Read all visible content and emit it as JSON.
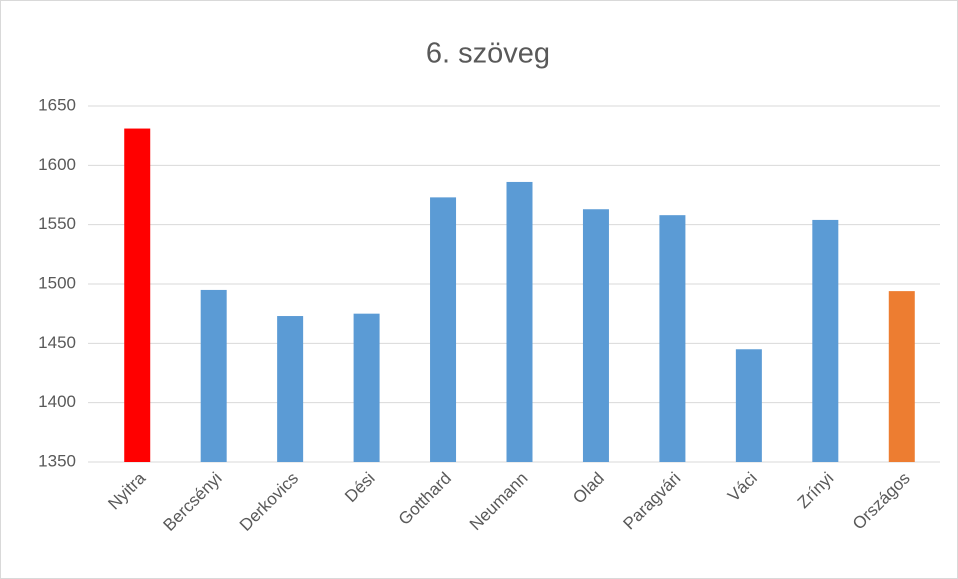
{
  "chart_data": {
    "type": "bar",
    "title": "6. szöveg",
    "categories": [
      "Nyitra",
      "Bercsényi",
      "Derkovics",
      "Dési",
      "Gotthard",
      "Neumann",
      "Olad",
      "Paragvári",
      "Váci",
      "Zrínyi",
      "Országos"
    ],
    "values": [
      1631,
      1495,
      1473,
      1475,
      1573,
      1586,
      1563,
      1558,
      1445,
      1554,
      1494
    ],
    "colors": [
      "#ff0000",
      "#5b9bd5",
      "#5b9bd5",
      "#5b9bd5",
      "#5b9bd5",
      "#5b9bd5",
      "#5b9bd5",
      "#5b9bd5",
      "#5b9bd5",
      "#5b9bd5",
      "#ed7d31"
    ],
    "ylim": [
      1350,
      1650
    ],
    "yticks": [
      1350,
      1400,
      1450,
      1500,
      1550,
      1600,
      1650
    ],
    "grid": true
  }
}
